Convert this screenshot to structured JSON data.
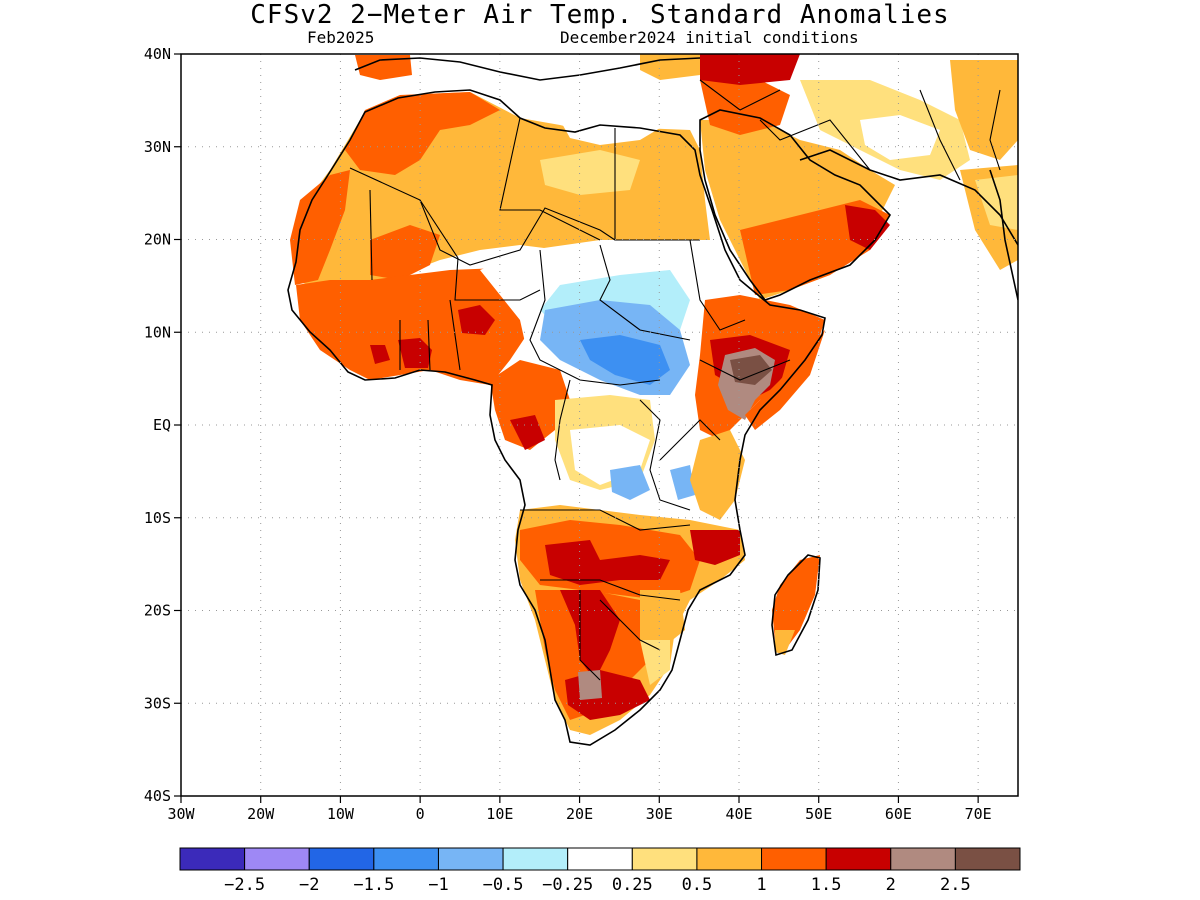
{
  "title": "CFSv2 2−Meter Air Temp. Standard Anomalies",
  "subtitle_left": "Feb2025",
  "subtitle_right": "December2024 initial conditions",
  "map": {
    "lon_range": [
      -30,
      75
    ],
    "lat_range": [
      -40,
      40
    ],
    "lat_ticks": [
      {
        "value": 40,
        "label": "40N"
      },
      {
        "value": 30,
        "label": "30N"
      },
      {
        "value": 20,
        "label": "20N"
      },
      {
        "value": 10,
        "label": "10N"
      },
      {
        "value": 0,
        "label": "EQ"
      },
      {
        "value": -10,
        "label": "10S"
      },
      {
        "value": -20,
        "label": "20S"
      },
      {
        "value": -30,
        "label": "30S"
      },
      {
        "value": -40,
        "label": "40S"
      }
    ],
    "lon_ticks": [
      {
        "value": -30,
        "label": "30W"
      },
      {
        "value": -20,
        "label": "20W"
      },
      {
        "value": -10,
        "label": "10W"
      },
      {
        "value": 0,
        "label": "0"
      },
      {
        "value": 10,
        "label": "10E"
      },
      {
        "value": 20,
        "label": "20E"
      },
      {
        "value": 30,
        "label": "30E"
      },
      {
        "value": 40,
        "label": "40E"
      },
      {
        "value": 50,
        "label": "50E"
      },
      {
        "value": 60,
        "label": "60E"
      },
      {
        "value": 70,
        "label": "70E"
      }
    ],
    "grid": true
  },
  "colorbar": {
    "colors": [
      "#3b2aba",
      "#9e88f5",
      "#2266e6",
      "#3d90f2",
      "#77b5f5",
      "#b3eefa",
      "#ffffff",
      "#ffe07d",
      "#ffb83a",
      "#ff5f00",
      "#c80000",
      "#b08a80",
      "#7a5044"
    ],
    "labels": [
      "−2.5",
      "−2",
      "−1.5",
      "−1",
      "−0.5",
      "−0.25",
      "0.25",
      "0.5",
      "1",
      "1.5",
      "2",
      "2.5"
    ]
  }
}
